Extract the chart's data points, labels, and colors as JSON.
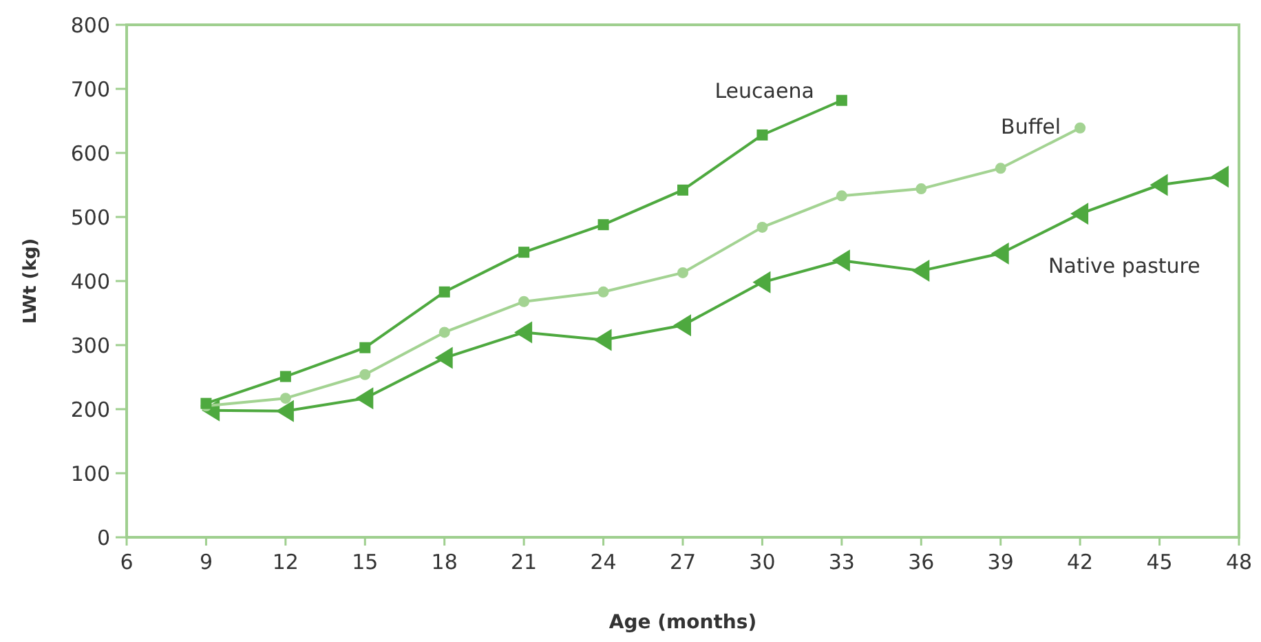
{
  "chart_data": {
    "type": "line",
    "xlabel": "Age (months)",
    "ylabel": "LWt (kg)",
    "xlim": [
      6,
      48
    ],
    "xticks": [
      6,
      9,
      12,
      15,
      18,
      21,
      24,
      27,
      30,
      33,
      36,
      39,
      42,
      45,
      48
    ],
    "ylim": [
      0,
      800
    ],
    "yticks": [
      0,
      100,
      200,
      300,
      400,
      500,
      600,
      700,
      800
    ],
    "grid": false,
    "legend": false,
    "series": [
      {
        "name": "Leucaena",
        "color": "#4ea93f",
        "marker": "square",
        "x": [
          9,
          12,
          15,
          18,
          21,
          24,
          27,
          30,
          33
        ],
        "values": [
          209,
          251,
          296,
          383,
          445,
          488,
          542,
          628,
          682
        ]
      },
      {
        "name": "Buffel",
        "color": "#a3d392",
        "marker": "circle",
        "x": [
          9,
          12,
          15,
          18,
          21,
          24,
          27,
          30,
          33,
          36,
          39,
          42
        ],
        "values": [
          205,
          217,
          254,
          320,
          368,
          383,
          413,
          484,
          533,
          544,
          576,
          639
        ]
      },
      {
        "name": "Native pasture",
        "color": "#4ea93f",
        "marker": "triangle",
        "x": [
          9.2,
          12,
          15,
          18,
          21,
          24,
          27,
          30,
          33,
          36,
          39,
          42,
          45,
          47.3
        ],
        "values": [
          198,
          197,
          217,
          280,
          320,
          308,
          331,
          398,
          432,
          416,
          443,
          505,
          550,
          563
        ]
      }
    ]
  }
}
